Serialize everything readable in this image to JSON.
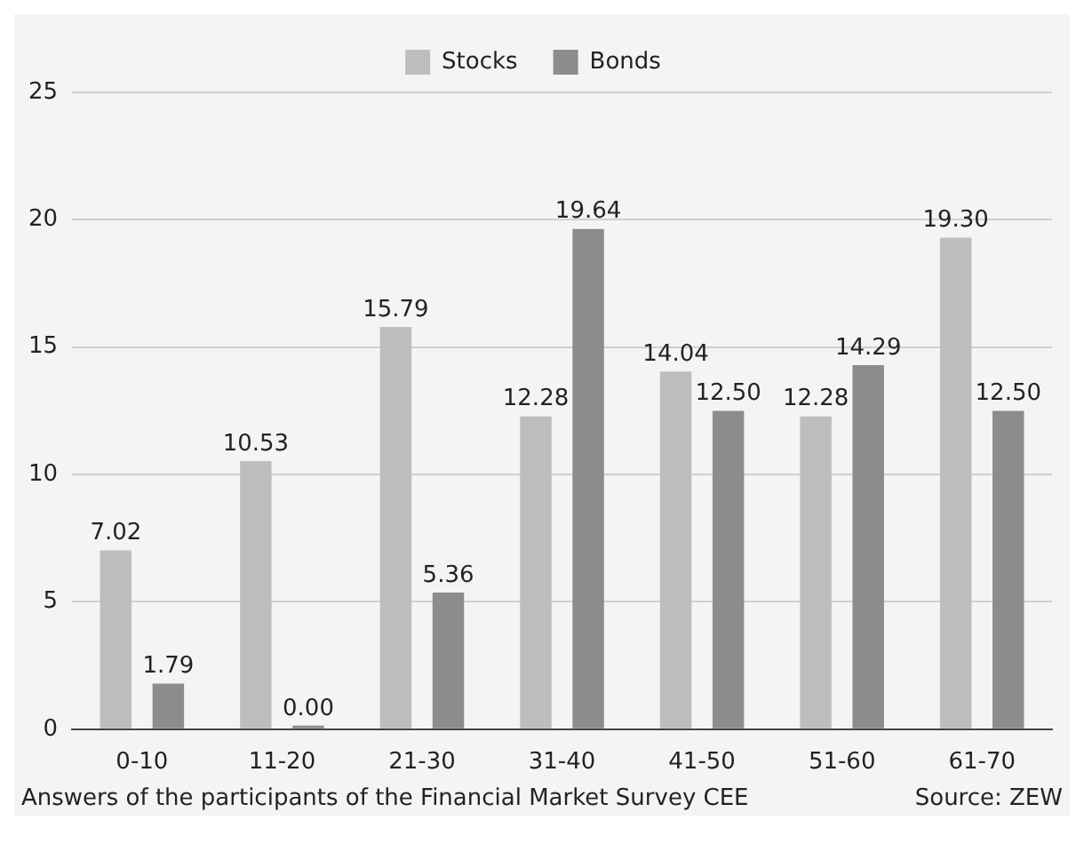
{
  "chart_data": {
    "type": "bar",
    "categories": [
      "0-10",
      "11-20",
      "21-30",
      "31-40",
      "41-50",
      "51-60",
      "61-70"
    ],
    "series": [
      {
        "name": "Stocks",
        "color": "#bdbdbd",
        "values": [
          7.02,
          10.53,
          15.79,
          12.28,
          14.04,
          12.28,
          19.3
        ],
        "value_labels": [
          "7.02",
          "10.53",
          "15.79",
          "12.28",
          "14.04",
          "12.28",
          "19.30"
        ]
      },
      {
        "name": "Bonds",
        "color": "#8c8c8c",
        "values": [
          1.79,
          0.0,
          5.36,
          19.64,
          12.5,
          14.29,
          12.5
        ],
        "value_labels": [
          "1.79",
          "0.00",
          "5.36",
          "19.64",
          "12.50",
          "14.29",
          "12.50"
        ]
      }
    ],
    "ylim": [
      0,
      25
    ],
    "yticks": [
      0,
      5,
      10,
      15,
      20,
      25
    ],
    "grid": "y",
    "legend": "top",
    "annotations": [
      "Answers of the participants of the Financial Market Survey CEE",
      "Source: ZEW"
    ]
  }
}
